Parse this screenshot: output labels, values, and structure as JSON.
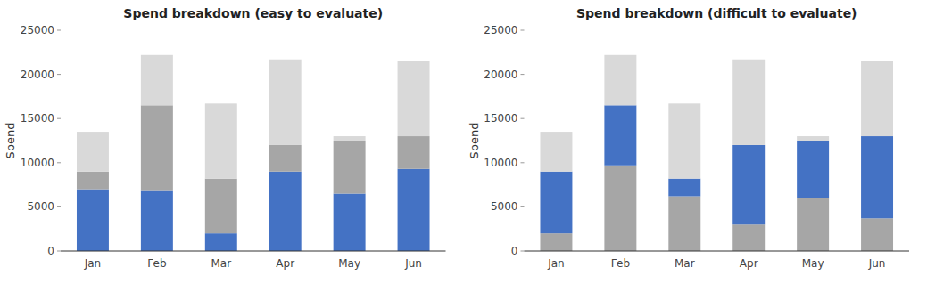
{
  "chart_data": [
    {
      "type": "bar",
      "stacked": true,
      "title": "Spend breakdown (easy to evaluate)",
      "ylabel": "Spend",
      "categories": [
        "Jan",
        "Feb",
        "Mar",
        "Apr",
        "May",
        "Jun"
      ],
      "series": [
        {
          "color": "#4472C4",
          "values": [
            7000,
            6800,
            2000,
            9000,
            6500,
            9300
          ]
        },
        {
          "color": "#A6A6A6",
          "values": [
            2000,
            9700,
            6200,
            3000,
            6000,
            3700
          ]
        },
        {
          "color": "#D9D9D9",
          "values": [
            4500,
            5700,
            8500,
            9700,
            500,
            8500
          ]
        }
      ],
      "ylim": [
        0,
        25000
      ],
      "yticks": [
        0,
        5000,
        10000,
        15000,
        20000,
        25000
      ],
      "grid": false
    },
    {
      "type": "bar",
      "stacked": true,
      "title": "Spend breakdown (difficult to evaluate)",
      "ylabel": "Spend",
      "categories": [
        "Jan",
        "Feb",
        "Mar",
        "Apr",
        "May",
        "Jun"
      ],
      "series": [
        {
          "color": "#A6A6A6",
          "values": [
            2000,
            9700,
            6200,
            3000,
            6000,
            3700
          ]
        },
        {
          "color": "#4472C4",
          "values": [
            7000,
            6800,
            2000,
            9000,
            6500,
            9300
          ]
        },
        {
          "color": "#D9D9D9",
          "values": [
            4500,
            5700,
            8500,
            9700,
            500,
            8500
          ]
        }
      ],
      "ylim": [
        0,
        25000
      ],
      "yticks": [
        0,
        5000,
        10000,
        15000,
        20000,
        25000
      ],
      "grid": false
    }
  ]
}
